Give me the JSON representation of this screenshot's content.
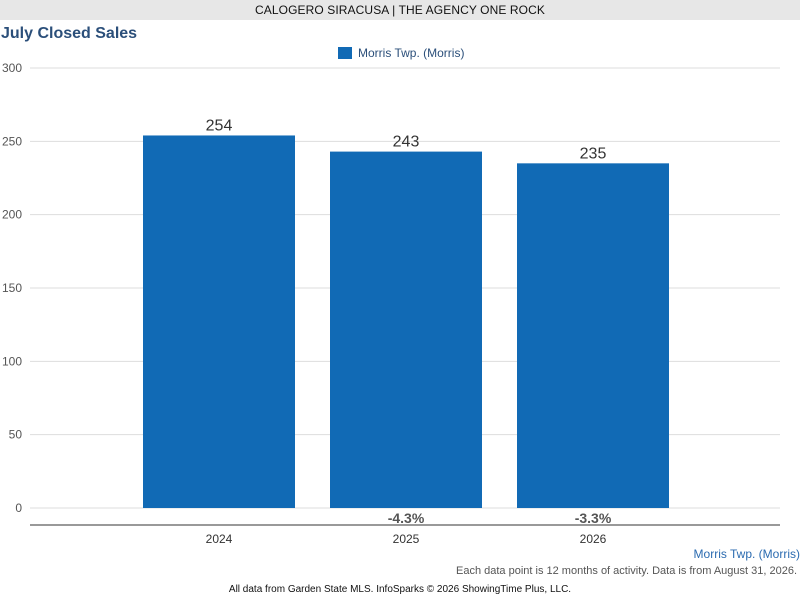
{
  "banner": "CALOGERO SIRACUSA | THE AGENCY ONE ROCK",
  "colors": {
    "bar": "#116ab5",
    "grid": "#dddddd",
    "axis": "#333333"
  },
  "chart_data": {
    "type": "bar",
    "title": "July Closed Sales",
    "xlabel": "",
    "ylabel": "",
    "categories": [
      "2024",
      "2025",
      "2026"
    ],
    "series": [
      {
        "name": "Morris Twp. (Morris)",
        "values": [
          254,
          243,
          235
        ]
      }
    ],
    "value_labels": [
      "254",
      "243",
      "235"
    ],
    "change_labels": [
      "",
      "-4.3%",
      "-3.3%"
    ],
    "ylim": [
      0,
      300
    ],
    "yticks": [
      0,
      50,
      100,
      150,
      200,
      250,
      300
    ],
    "grid": true,
    "legend": "top-center"
  },
  "series_label_corner": "Morris Twp. (Morris)",
  "note": "Each data point is 12 months of activity. Data is from August 31, 2026.",
  "footer": "All data from Garden State MLS. InfoSparks © 2026 ShowingTime Plus, LLC."
}
